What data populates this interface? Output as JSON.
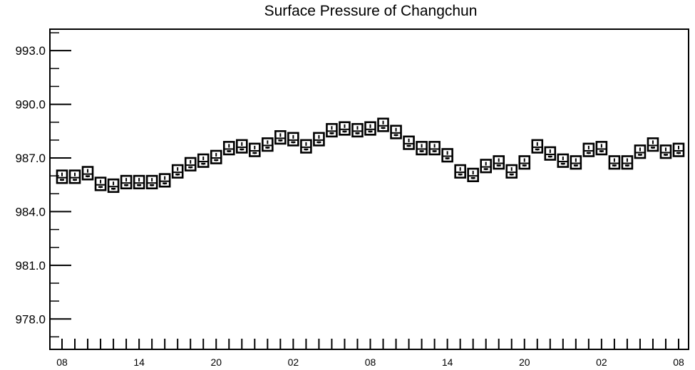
{
  "chart_data": {
    "type": "boxplot",
    "title": "Surface Pressure of Changchun",
    "xlabel": "",
    "ylabel": "",
    "ylim": [
      976.3,
      994.2
    ],
    "y_ticks": [
      "978.0",
      "981.0",
      "984.0",
      "987.0",
      "990.0",
      "993.0"
    ],
    "y_tick_values": [
      978.0,
      981.0,
      984.0,
      987.0,
      990.0,
      993.0
    ],
    "x_tick_labels": [
      "08",
      "14",
      "20",
      "02",
      "08",
      "14",
      "20",
      "02",
      "08"
    ],
    "time_step_hours": 1,
    "grid": false,
    "box_style": "open box with inner whisker marks, unfilled",
    "series": [
      {
        "hours": [
          0,
          1,
          2,
          3,
          4,
          5,
          6,
          7,
          8,
          9,
          10,
          11,
          12,
          13,
          14,
          15,
          16,
          17,
          18,
          19,
          20,
          21,
          22,
          23,
          24,
          25,
          26,
          27,
          28,
          29,
          30,
          31,
          32,
          33,
          34,
          35,
          36,
          37,
          38,
          39,
          40,
          41,
          42,
          43,
          44,
          45,
          46,
          47,
          48
        ],
        "median": [
          985.9,
          985.9,
          986.1,
          985.5,
          985.4,
          985.6,
          985.6,
          985.6,
          985.7,
          986.2,
          986.6,
          986.8,
          987.0,
          987.5,
          987.6,
          987.4,
          987.7,
          988.1,
          988.0,
          987.6,
          988.0,
          988.5,
          988.6,
          988.5,
          988.6,
          988.8,
          988.4,
          987.8,
          987.5,
          987.5,
          987.1,
          986.2,
          986.0,
          986.5,
          986.7,
          986.2,
          986.7,
          987.6,
          987.2,
          986.8,
          986.7,
          987.4,
          987.5,
          986.7,
          986.7,
          987.3,
          987.7,
          987.3,
          987.4
        ],
        "box_low": [
          985.6,
          985.6,
          985.8,
          985.2,
          985.1,
          985.3,
          985.3,
          985.3,
          985.4,
          985.9,
          986.3,
          986.5,
          986.7,
          987.2,
          987.3,
          987.1,
          987.4,
          987.8,
          987.7,
          987.3,
          987.7,
          988.2,
          988.3,
          988.2,
          988.3,
          988.5,
          988.1,
          987.5,
          987.2,
          987.2,
          986.8,
          985.9,
          985.7,
          986.2,
          986.4,
          985.9,
          986.4,
          987.3,
          986.9,
          986.5,
          986.4,
          987.1,
          987.2,
          986.4,
          986.4,
          987.0,
          987.4,
          987.0,
          987.1
        ],
        "box_high": [
          986.3,
          986.3,
          986.5,
          985.9,
          985.8,
          986.0,
          986.0,
          986.0,
          986.1,
          986.6,
          987.0,
          987.2,
          987.4,
          987.9,
          988.0,
          987.8,
          988.1,
          988.5,
          988.4,
          988.0,
          988.4,
          988.9,
          989.0,
          988.9,
          989.0,
          989.2,
          988.8,
          988.2,
          987.9,
          987.9,
          987.5,
          986.6,
          986.4,
          986.9,
          987.1,
          986.6,
          987.1,
          988.0,
          987.6,
          987.2,
          987.1,
          987.8,
          987.9,
          987.1,
          987.1,
          987.7,
          988.1,
          987.7,
          987.8
        ]
      }
    ]
  }
}
